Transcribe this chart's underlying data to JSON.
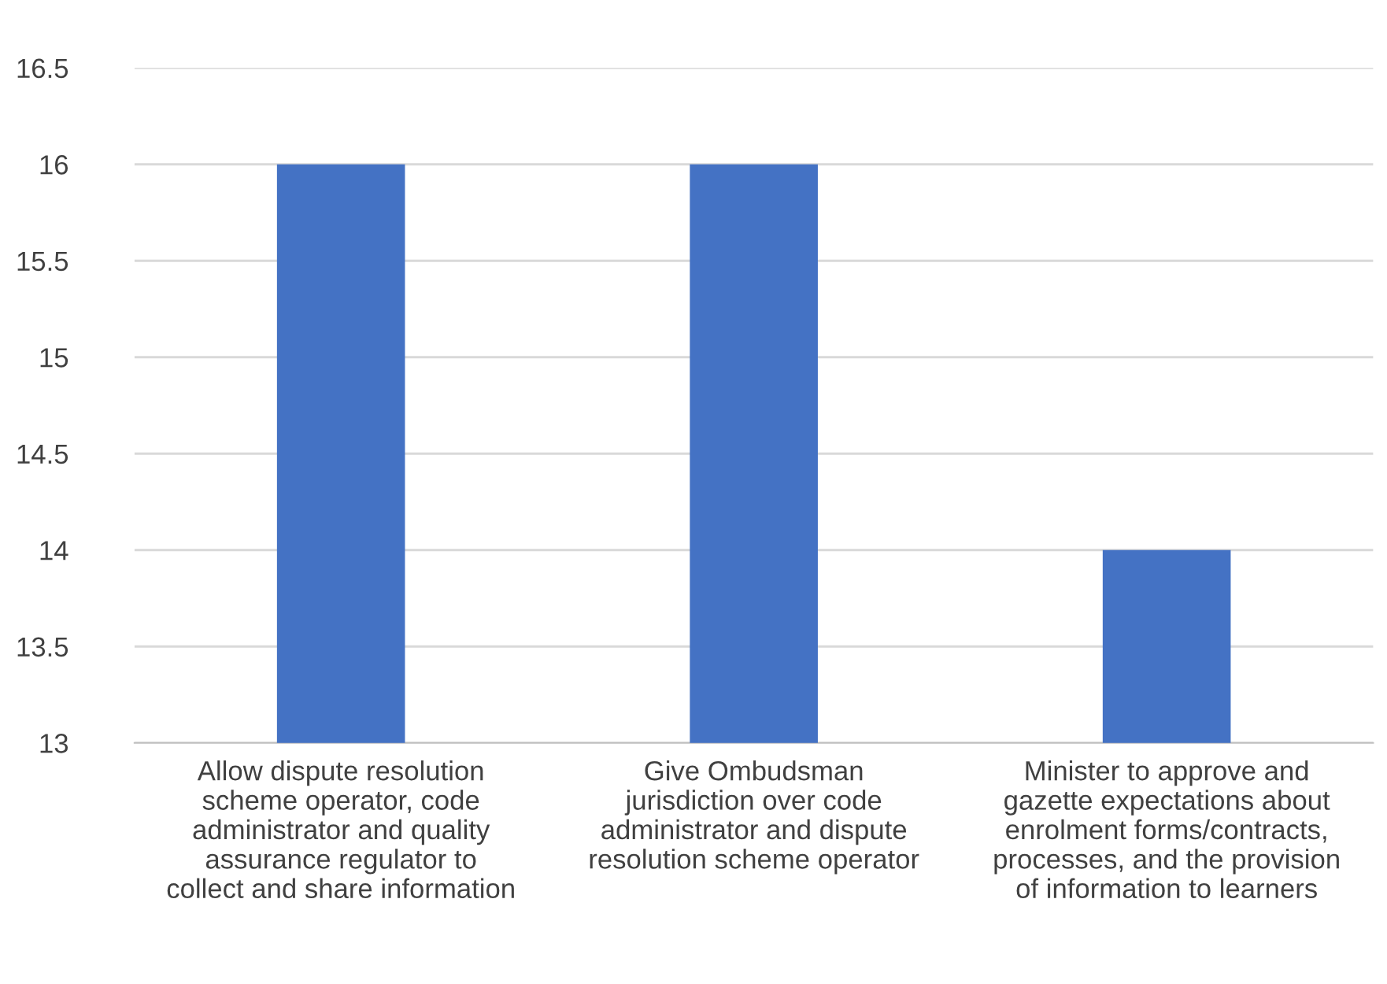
{
  "chart_data": {
    "type": "bar",
    "categories": [
      "Allow dispute resolution\nscheme operator, code\nadministrator and quality\nassurance regulator to\ncollect and share information",
      "Give Ombudsman\njurisdiction over code\nadministrator and dispute\nresolution scheme operator",
      "Minister to approve and\ngazette expectations about\nenrolment forms/contracts,\nprocesses, and the provision\nof information to learners"
    ],
    "values": [
      16,
      16,
      14
    ],
    "color": "#4472c4",
    "ylim": [
      13,
      16.5
    ],
    "yticks": [
      13,
      13.5,
      14,
      14.5,
      15,
      15.5,
      16,
      16.5
    ],
    "grid": "y"
  }
}
